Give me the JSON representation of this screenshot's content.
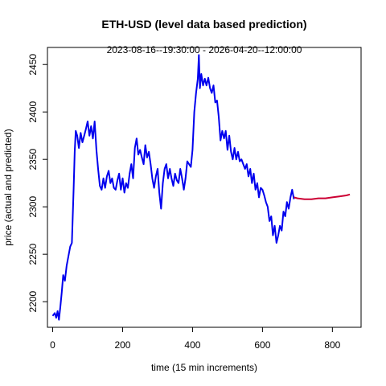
{
  "chart_data": {
    "type": "line",
    "title": "ETH-USD (level data based prediction)",
    "subtitle": "2023-08-16--19:30:00  -  2026-04-20--12:00:00",
    "xlabel": "time (15 min increments)",
    "ylabel": "price (actual and predicted)",
    "xlim": [
      -15,
      882
    ],
    "ylim": [
      2173,
      2468
    ],
    "xticks": [
      0,
      200,
      400,
      600,
      800
    ],
    "yticks": [
      2200,
      2250,
      2300,
      2350,
      2400,
      2450
    ],
    "grid": false,
    "series": [
      {
        "color": "#0000ee",
        "x": [
          0,
          6,
          10,
          14,
          18,
          22,
          26,
          30,
          35,
          40,
          45,
          50,
          55,
          60,
          63,
          66,
          70,
          75,
          80,
          85,
          90,
          95,
          100,
          105,
          110,
          115,
          120,
          125,
          130,
          135,
          140,
          145,
          150,
          155,
          160,
          165,
          170,
          175,
          180,
          185,
          190,
          195,
          200,
          205,
          210,
          215,
          220,
          225,
          230,
          235,
          240,
          245,
          250,
          255,
          260,
          265,
          270,
          275,
          280,
          285,
          290,
          295,
          300,
          305,
          310,
          315,
          320,
          325,
          330,
          335,
          340,
          345,
          350,
          355,
          360,
          365,
          370,
          375,
          380,
          385,
          390,
          395,
          400,
          405,
          410,
          415,
          418,
          421,
          425,
          430,
          435,
          440,
          445,
          450,
          455,
          460,
          465,
          470,
          475,
          480,
          485,
          490,
          495,
          500,
          505,
          510,
          515,
          520,
          525,
          530,
          535,
          540,
          545,
          550,
          555,
          560,
          565,
          570,
          575,
          580,
          585,
          590,
          595,
          600,
          605,
          610,
          615,
          620,
          625,
          630,
          635,
          640,
          645,
          650,
          655,
          660,
          665,
          670,
          675,
          680,
          685,
          690
        ],
        "y": [
          2185,
          2188,
          2183,
          2190,
          2181,
          2195,
          2210,
          2228,
          2222,
          2238,
          2248,
          2258,
          2262,
          2320,
          2358,
          2380,
          2375,
          2362,
          2378,
          2368,
          2375,
          2382,
          2390,
          2375,
          2385,
          2372,
          2390,
          2360,
          2340,
          2322,
          2318,
          2330,
          2320,
          2332,
          2338,
          2325,
          2330,
          2320,
          2318,
          2328,
          2335,
          2318,
          2330,
          2315,
          2325,
          2320,
          2335,
          2345,
          2330,
          2362,
          2372,
          2355,
          2360,
          2352,
          2345,
          2365,
          2352,
          2358,
          2345,
          2330,
          2320,
          2332,
          2340,
          2315,
          2298,
          2325,
          2340,
          2345,
          2330,
          2340,
          2330,
          2322,
          2335,
          2328,
          2325,
          2340,
          2330,
          2318,
          2330,
          2348,
          2345,
          2342,
          2360,
          2400,
          2420,
          2435,
          2460,
          2425,
          2440,
          2428,
          2435,
          2428,
          2436,
          2425,
          2420,
          2428,
          2410,
          2412,
          2395,
          2370,
          2380,
          2372,
          2380,
          2360,
          2375,
          2358,
          2350,
          2362,
          2350,
          2358,
          2348,
          2350,
          2345,
          2340,
          2345,
          2332,
          2340,
          2325,
          2335,
          2318,
          2325,
          2310,
          2320,
          2318,
          2312,
          2305,
          2300,
          2285,
          2290,
          2270,
          2280,
          2262,
          2270,
          2280,
          2275,
          2295,
          2290,
          2305,
          2298,
          2310,
          2318,
          2308
        ],
        "width": 2
      },
      {
        "color": "#cc0033",
        "x": [
          690,
          700,
          720,
          740,
          760,
          780,
          800,
          820,
          840,
          850
        ],
        "y": [
          2310,
          2309,
          2308,
          2308,
          2309,
          2309,
          2310,
          2311,
          2312,
          2313
        ],
        "width": 2
      }
    ]
  }
}
